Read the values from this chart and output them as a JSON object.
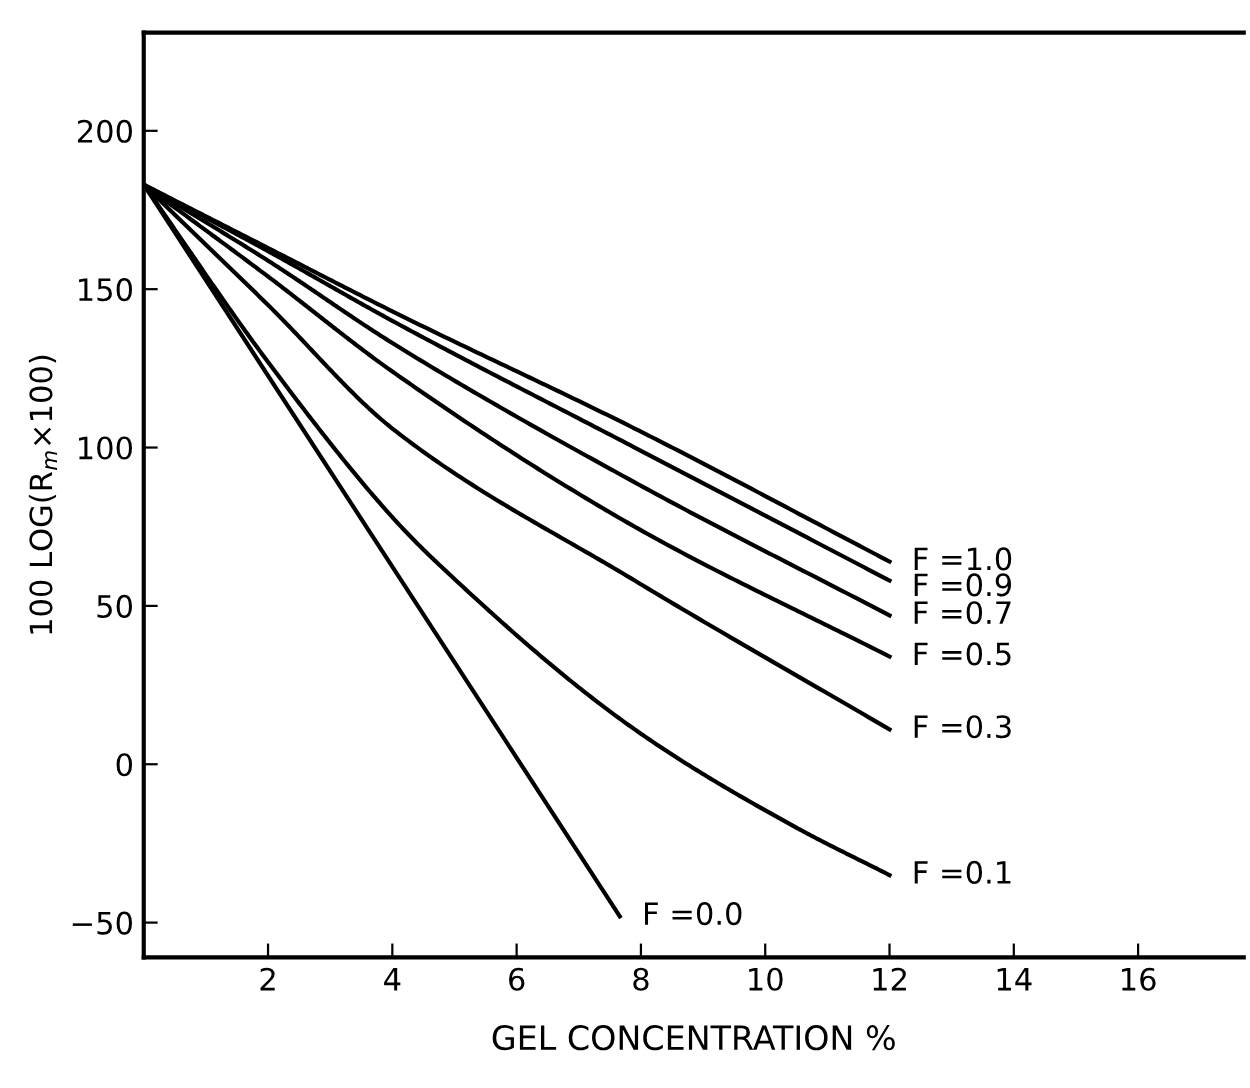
{
  "chart_data": {
    "type": "line",
    "xlabel": "GEL CONCENTRATION %",
    "ylabel": "100 LOG(R$_{m}$×100)",
    "xlim": [
      0,
      17.7
    ],
    "ylim": [
      -61,
      231
    ],
    "xticks": [
      2,
      4,
      6,
      8,
      10,
      12,
      14,
      16
    ],
    "yticks": [
      -50,
      0,
      50,
      100,
      150,
      200
    ],
    "grid": false,
    "legend": false,
    "marker": "none",
    "line_style": "solid",
    "series": [
      {
        "name": "F =1.0",
        "color": "#000000",
        "x": [
          0,
          2,
          4,
          7.9,
          12
        ],
        "values": [
          183,
          163,
          143,
          106,
          64
        ]
      },
      {
        "name": "F =0.9",
        "color": "#000000",
        "x": [
          0,
          2,
          4,
          7.9,
          12
        ],
        "values": [
          183,
          162,
          140,
          100,
          58
        ]
      },
      {
        "name": "F =0.7",
        "color": "#000000",
        "x": [
          0,
          2,
          4,
          7.9,
          12
        ],
        "values": [
          183,
          159,
          133,
          89,
          47
        ]
      },
      {
        "name": "F =0.5",
        "color": "#000000",
        "x": [
          0,
          2,
          4,
          7.9,
          12
        ],
        "values": [
          183,
          154,
          124,
          75,
          34
        ]
      },
      {
        "name": "F =0.3",
        "color": "#000000",
        "x": [
          0,
          2,
          4,
          7.9,
          12
        ],
        "values": [
          183,
          145,
          106,
          58,
          11
        ]
      },
      {
        "name": "F =0.1",
        "color": "#000000",
        "x": [
          0,
          2,
          4,
          4.7,
          7.9,
          10.5,
          12
        ],
        "values": [
          183,
          127,
          78,
          64,
          11,
          -20,
          -35
        ]
      },
      {
        "name": "F =0.0",
        "color": "#000000",
        "x": [
          0,
          7.66
        ],
        "values": [
          183,
          -48
        ]
      }
    ]
  }
}
